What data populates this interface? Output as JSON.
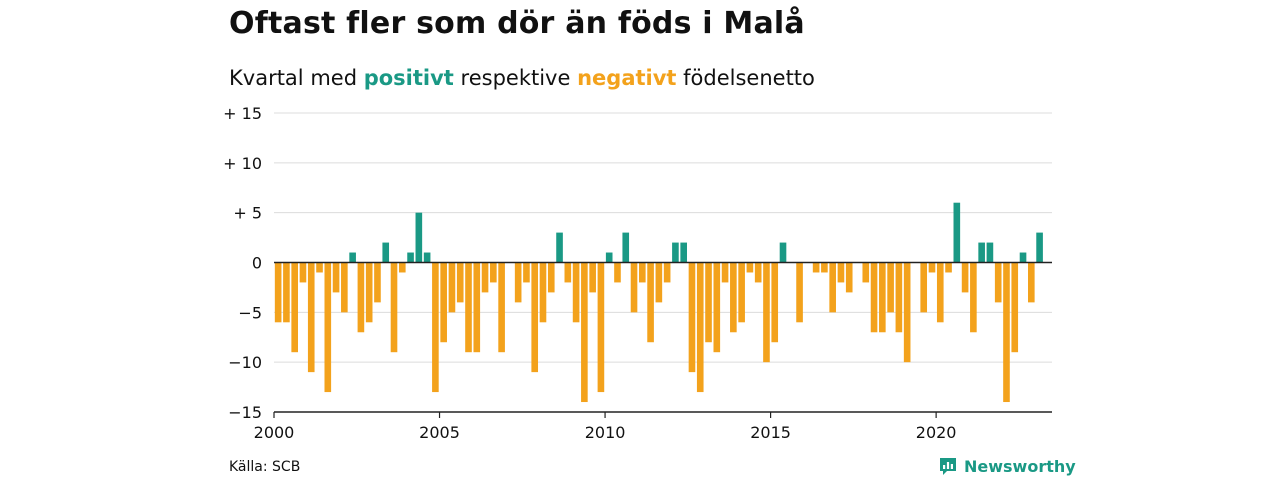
{
  "title": "Oftast fler som dör än föds i Malå",
  "subtitle": {
    "before": "Kvartal med",
    "positive_word": "positivt",
    "middle": "respektive",
    "negative_word": "negativt",
    "after": "födelsenetto"
  },
  "source": "Källa: SCB",
  "brand": "Newsworthy",
  "colors": {
    "positive": "#1a9985",
    "negative": "#f3a21c",
    "grid": "#dcdcdc",
    "zero": "#222222"
  },
  "chart_data": {
    "type": "bar",
    "x_start": 2000.0,
    "x_step": 0.25,
    "xlim": [
      2000,
      2023.5
    ],
    "ylim": [
      -15,
      15
    ],
    "y_ticks": [
      15,
      10,
      5,
      0,
      -5,
      -10,
      -15
    ],
    "y_tick_labels": [
      "+ 15",
      "+ 10",
      "+  5",
      "0",
      "−5",
      "−10",
      "−15"
    ],
    "x_ticks": [
      2000,
      2005,
      2010,
      2015,
      2020
    ],
    "x_tick_labels": [
      "2000",
      "2005",
      "2010",
      "2015",
      "2020"
    ],
    "grid": true,
    "values": [
      -6,
      -6,
      -9,
      -2,
      -11,
      -1,
      -13,
      -3,
      -5,
      1,
      -7,
      -6,
      -4,
      2,
      -9,
      -1,
      1,
      5,
      1,
      -13,
      -8,
      -5,
      -4,
      -9,
      -9,
      -3,
      -2,
      -9,
      0,
      -4,
      -2,
      -11,
      -6,
      -3,
      3,
      -2,
      -6,
      -14,
      -3,
      -13,
      1,
      -2,
      3,
      -5,
      -2,
      -8,
      -4,
      -2,
      2,
      2,
      -11,
      -13,
      -8,
      -9,
      -2,
      -7,
      -6,
      -1,
      -2,
      -10,
      -8,
      2,
      0,
      -6,
      0,
      -1,
      -1,
      -5,
      -2,
      -3,
      0,
      -2,
      -7,
      -7,
      -5,
      -7,
      -10,
      0,
      -5,
      -1,
      -6,
      -1,
      6,
      -3,
      -7,
      2,
      2,
      -4,
      -14,
      -9,
      1,
      -4,
      3
    ]
  }
}
